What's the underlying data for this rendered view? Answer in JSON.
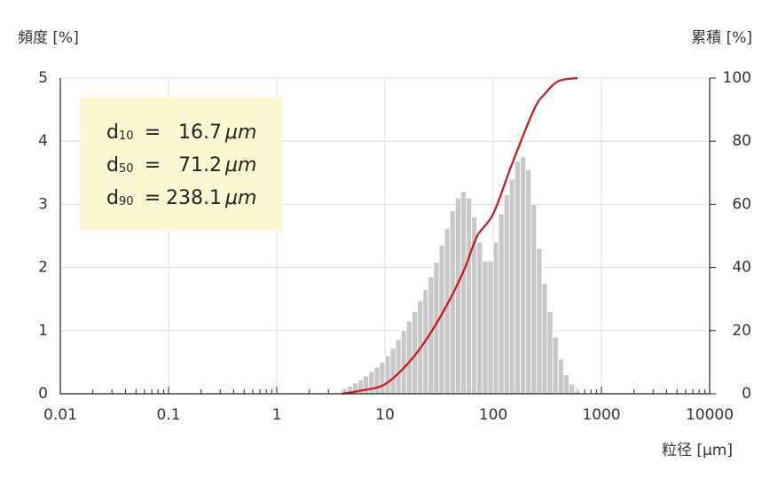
{
  "chart_data": {
    "type": "histogram",
    "ylabel": "頻度 [%]",
    "y2label": "累積 [%]",
    "xlabel": "粒径 [μm]",
    "xscale": "log",
    "xlim": [
      0.01,
      10000
    ],
    "xticks": [
      0.01,
      0.1,
      1,
      10,
      100,
      1000,
      10000
    ],
    "xminor": true,
    "ylim": [
      0,
      5
    ],
    "yticks": [
      0,
      1,
      2,
      3,
      4,
      5
    ],
    "y2lim": [
      0,
      100
    ],
    "y2ticks": [
      0,
      20,
      40,
      60,
      80,
      100
    ],
    "grid": true,
    "color": "#c8c8c8",
    "bins": [
      3.98,
      4.47,
      5.01,
      5.62,
      6.31,
      7.08,
      7.94,
      8.91,
      10,
      11.2,
      12.6,
      14.1,
      15.8,
      17.8,
      20,
      22.4,
      25.1,
      28.2,
      31.6,
      35.5,
      39.8,
      44.7,
      50.1,
      56.2,
      63.1,
      70.8,
      79.4,
      89.1,
      100,
      112,
      126,
      141,
      158,
      178,
      200,
      224,
      251,
      282,
      316,
      355,
      398,
      447,
      501,
      562,
      631
    ],
    "values": [
      0.08,
      0.12,
      0.17,
      0.22,
      0.28,
      0.35,
      0.42,
      0.5,
      0.6,
      0.72,
      0.86,
      1.0,
      1.15,
      1.3,
      1.47,
      1.65,
      1.85,
      2.08,
      2.35,
      2.62,
      2.9,
      3.1,
      3.2,
      3.1,
      2.8,
      2.4,
      2.1,
      2.1,
      2.4,
      2.85,
      3.15,
      3.4,
      3.68,
      3.75,
      3.55,
      3.0,
      2.3,
      1.75,
      1.3,
      0.9,
      0.55,
      0.3,
      0.15,
      0.05
    ],
    "lines": [
      {
        "axis": "y2",
        "color": "#d0121b",
        "x": [
          4,
          6,
          10,
          16.7,
          25,
          40,
          55,
          71.2,
          100,
          150,
          238.1,
          300,
          400,
          600
        ],
        "values": [
          0,
          1,
          3,
          10,
          18,
          30,
          40,
          50,
          57,
          73,
          90,
          95,
          99,
          100
        ]
      }
    ],
    "annotations": [
      {
        "label": "d",
        "sub": "10",
        "sign": "=",
        "value": "16.7",
        "unit": "μm"
      },
      {
        "label": "d",
        "sub": "50",
        "sign": "=",
        "value": "71.2",
        "unit": "μm"
      },
      {
        "label": "d",
        "sub": "90",
        "sign": "=",
        "value": "238.1",
        "unit": "μm"
      }
    ]
  }
}
